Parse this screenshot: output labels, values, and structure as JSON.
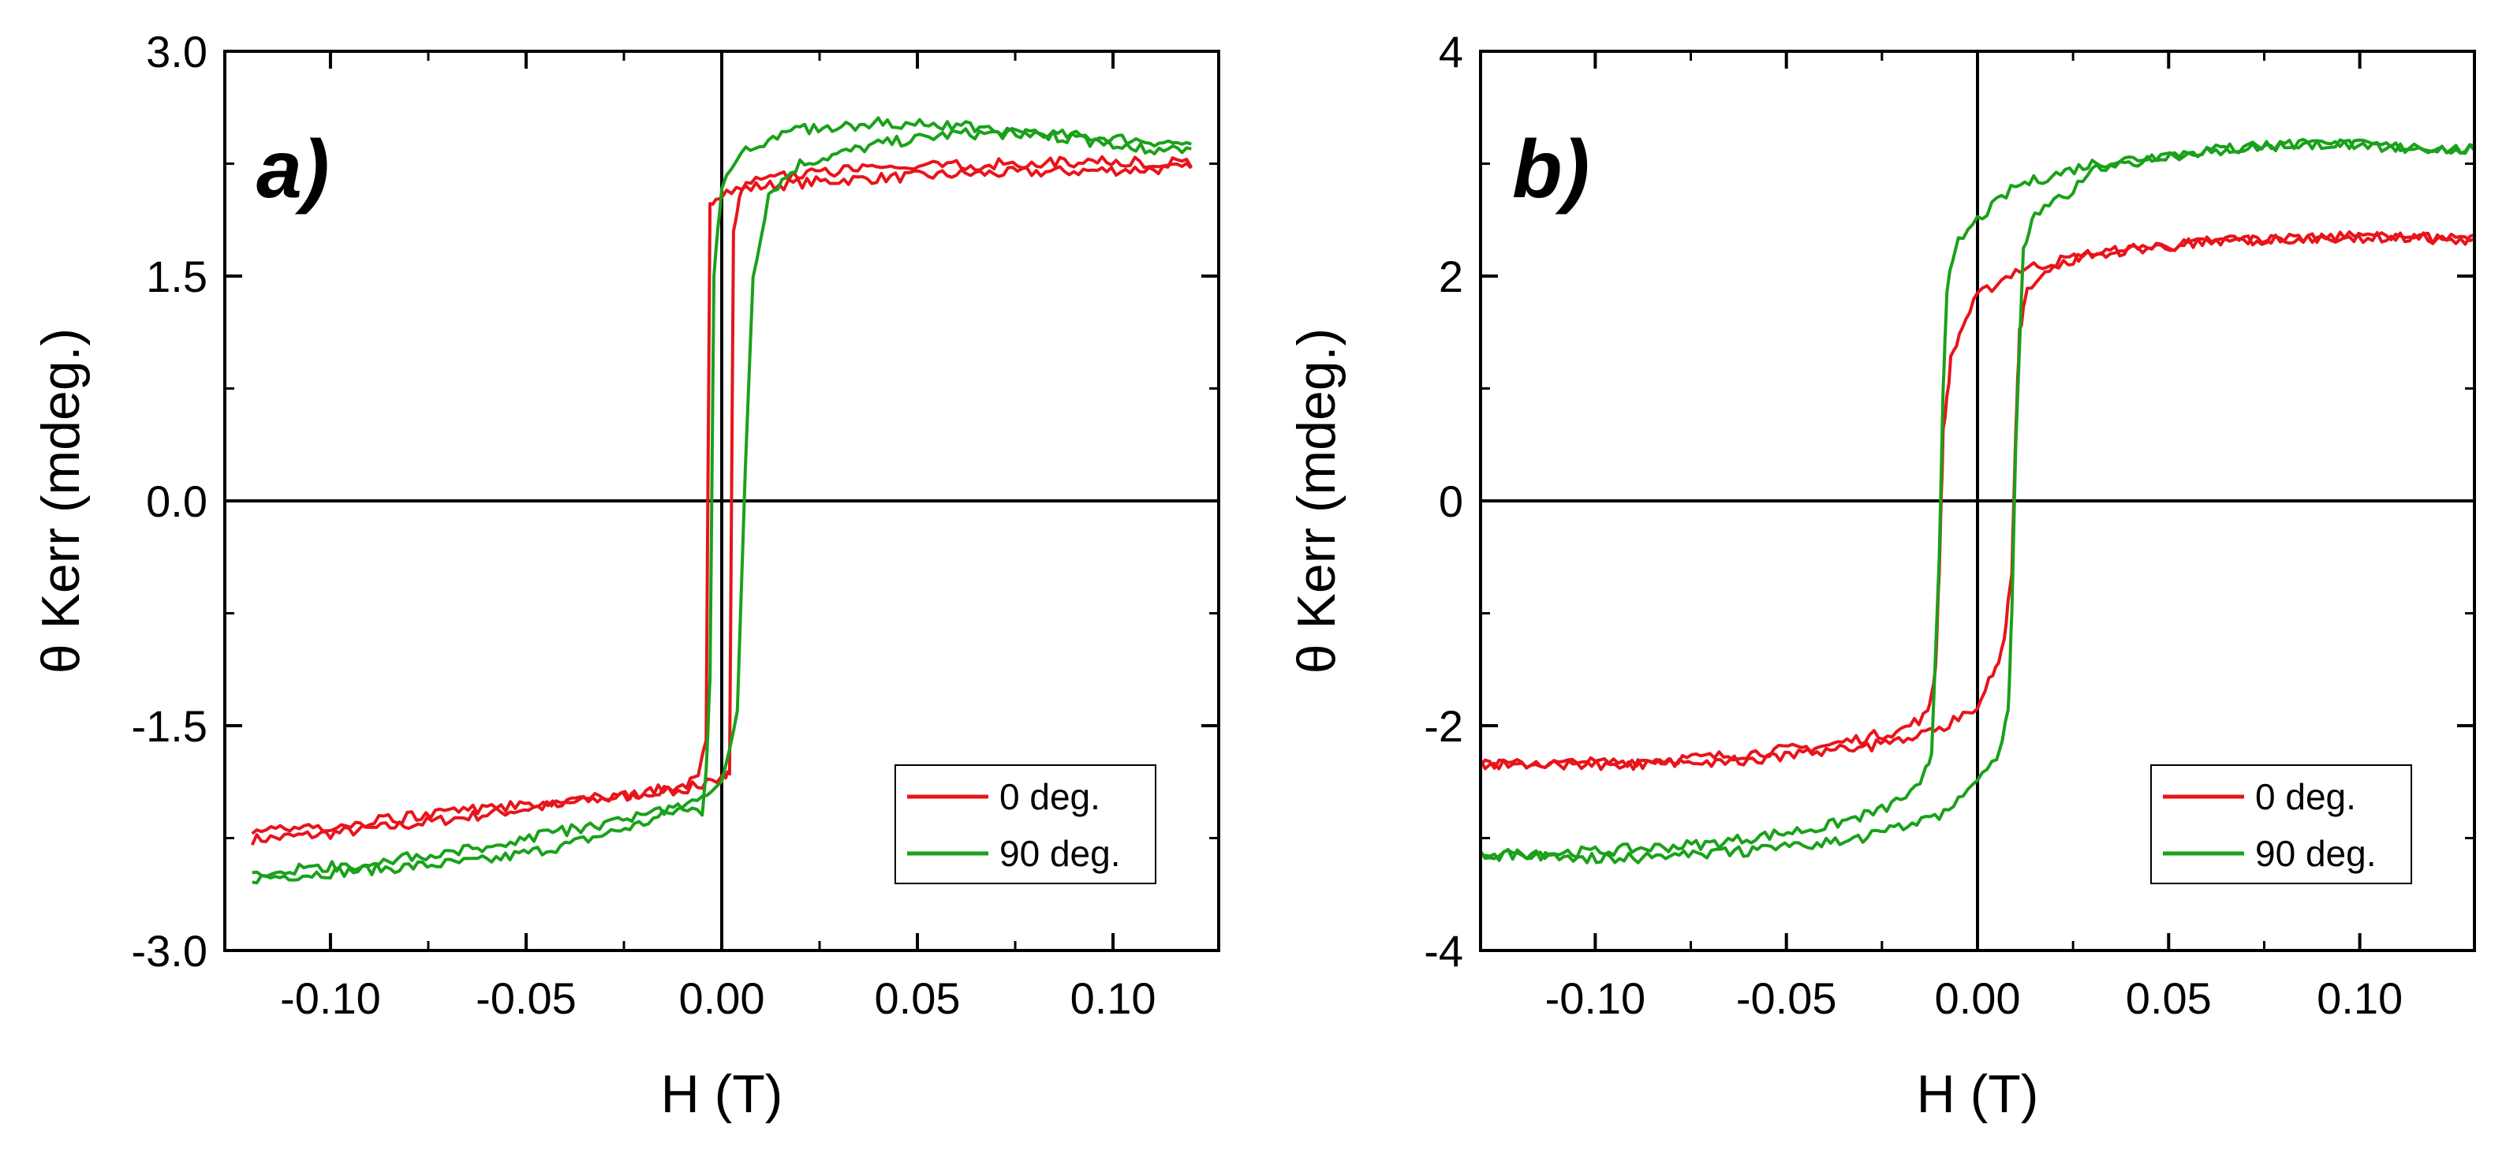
{
  "figure": {
    "description_panels": [
      "a",
      "b"
    ]
  },
  "chart_data": [
    {
      "type": "line",
      "panel_label": "a)",
      "xlabel": "H (T)",
      "ylabel": "θ Kerr (mdeg.)",
      "xlim": [
        -0.127,
        0.127
      ],
      "ylim": [
        -3.0,
        3.0
      ],
      "x_ticks": [
        -0.1,
        -0.05,
        0.0,
        0.05,
        0.1
      ],
      "x_tick_labels": [
        "-0.10",
        "-0.05",
        "0.00",
        "0.05",
        "0.10"
      ],
      "y_ticks": [
        -3.0,
        -1.5,
        0.0,
        1.5,
        3.0
      ],
      "y_tick_labels": [
        "-3.0",
        "-1.5",
        "0.0",
        "1.5",
        "3.0"
      ],
      "zero_lines": true,
      "legend_position": "bottom-right",
      "series": [
        {
          "name": "0 deg.",
          "color": "#e8141b",
          "branches": [
            {
              "x": [
                -0.12,
                -0.1,
                -0.08,
                -0.06,
                -0.04,
                -0.02,
                -0.01,
                -0.006,
                -0.004,
                -0.003,
                0.0,
                0.01,
                0.03,
                0.06,
                0.09,
                0.12
              ],
              "y": [
                -2.26,
                -2.22,
                -2.16,
                -2.09,
                -2.02,
                -1.95,
                -1.9,
                -1.86,
                -1.6,
                2.0,
                2.06,
                2.1,
                2.14,
                2.18,
                2.2,
                2.22
              ]
            },
            {
              "x": [
                0.12,
                0.09,
                0.06,
                0.03,
                0.01,
                0.005,
                0.003,
                0.002,
                0.0,
                -0.01,
                -0.03,
                -0.06,
                -0.09,
                -0.12
              ],
              "y": [
                2.26,
                2.26,
                2.24,
                2.2,
                2.15,
                2.08,
                1.8,
                -1.8,
                -1.86,
                -1.92,
                -1.98,
                -2.05,
                -2.14,
                -2.22
              ]
            }
          ]
        },
        {
          "name": "90 deg.",
          "color": "#1aa11a",
          "branches": [
            {
              "x": [
                -0.12,
                -0.1,
                -0.08,
                -0.06,
                -0.04,
                -0.02,
                -0.01,
                -0.005,
                0.0,
                0.004,
                0.006,
                0.008,
                0.012,
                0.02,
                0.04,
                0.06,
                0.08,
                0.1,
                0.12
              ],
              "y": [
                -2.52,
                -2.48,
                -2.44,
                -2.4,
                -2.3,
                -2.15,
                -2.05,
                -1.95,
                -1.9,
                -1.4,
                0.2,
                1.5,
                2.05,
                2.25,
                2.38,
                2.45,
                2.45,
                2.42,
                2.38
              ]
            },
            {
              "x": [
                0.12,
                0.1,
                0.08,
                0.06,
                0.04,
                0.02,
                0.005,
                0.0,
                -0.002,
                -0.003,
                -0.004,
                -0.005,
                -0.01,
                -0.03,
                -0.06,
                -0.09,
                -0.12
              ],
              "y": [
                2.32,
                2.38,
                2.45,
                2.5,
                2.52,
                2.48,
                2.35,
                2.1,
                1.5,
                -1.2,
                -1.8,
                -2.1,
                -2.05,
                -2.15,
                -2.3,
                -2.42,
                -2.48
              ]
            }
          ]
        }
      ]
    },
    {
      "type": "line",
      "panel_label": "b)",
      "xlabel": "H (T)",
      "ylabel": "θ Kerr (mdeg.)",
      "xlim": [
        -0.13,
        0.13
      ],
      "ylim": [
        -4,
        4
      ],
      "x_ticks": [
        -0.1,
        -0.05,
        0.0,
        0.05,
        0.1
      ],
      "x_tick_labels": [
        "-0.10",
        "-0.05",
        "0.00",
        "0.05",
        "0.10"
      ],
      "y_ticks": [
        -4,
        -2,
        0,
        2,
        4
      ],
      "y_tick_labels": [
        "-4",
        "-2",
        "0",
        "2",
        "4"
      ],
      "zero_lines": true,
      "legend_position": "bottom-right",
      "series": [
        {
          "name": "0 deg.",
          "color": "#e8141b",
          "branches": [
            {
              "x": [
                -0.13,
                -0.1,
                -0.07,
                -0.04,
                -0.02,
                -0.013,
                -0.011,
                -0.01,
                -0.009,
                -0.007,
                -0.004,
                0.0,
                0.01,
                0.03,
                0.06,
                0.09,
                0.13
              ],
              "y": [
                -2.35,
                -2.33,
                -2.28,
                -2.18,
                -2.04,
                -1.9,
                -1.5,
                -0.6,
                0.6,
                1.25,
                1.55,
                1.82,
                2.05,
                2.2,
                2.3,
                2.35,
                2.33
              ]
            },
            {
              "x": [
                0.13,
                0.09,
                0.06,
                0.03,
                0.02,
                0.013,
                0.011,
                0.01,
                0.009,
                0.007,
                0.004,
                0.0,
                -0.01,
                -0.03,
                -0.06,
                -0.09,
                -0.13
              ],
              "y": [
                2.33,
                2.35,
                2.3,
                2.2,
                2.08,
                1.9,
                1.5,
                0.6,
                -0.6,
                -1.25,
                -1.55,
                -1.82,
                -2.05,
                -2.2,
                -2.3,
                -2.35,
                -2.35
              ]
            }
          ]
        },
        {
          "name": "90 deg.",
          "color": "#1aa11a",
          "branches": [
            {
              "x": [
                -0.13,
                -0.1,
                -0.07,
                -0.04,
                -0.025,
                -0.015,
                -0.012,
                -0.01,
                -0.009,
                -0.008,
                -0.005,
                0.0,
                0.01,
                0.03,
                0.06,
                0.09,
                0.13
              ],
              "y": [
                -3.15,
                -3.12,
                -3.05,
                -2.9,
                -2.75,
                -2.55,
                -2.25,
                -0.5,
                1.0,
                1.9,
                2.3,
                2.5,
                2.8,
                3.0,
                3.12,
                3.18,
                3.12
              ]
            },
            {
              "x": [
                0.13,
                0.09,
                0.06,
                0.03,
                0.025,
                0.015,
                0.012,
                0.01,
                0.009,
                0.008,
                0.005,
                0.0,
                -0.01,
                -0.03,
                -0.06,
                -0.09,
                -0.13
              ],
              "y": [
                3.12,
                3.18,
                3.12,
                2.95,
                2.75,
                2.55,
                2.25,
                0.5,
                -1.0,
                -1.9,
                -2.3,
                -2.5,
                -2.8,
                -3.0,
                -3.12,
                -3.18,
                -3.15
              ]
            }
          ]
        }
      ]
    }
  ]
}
